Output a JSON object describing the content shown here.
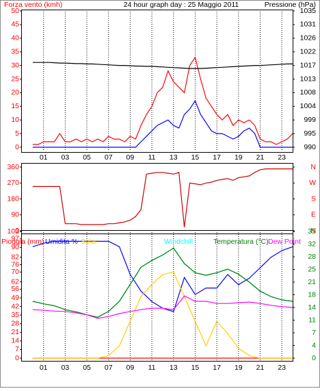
{
  "chart_data": [
    {
      "type": "line",
      "title": "24 hour graph day : 25 Maggio 2011",
      "ylabel": "Forza vento (kmh)",
      "y2label": "Pressione (hPa)",
      "x": [
        0,
        0.5,
        1,
        1.5,
        2,
        2.5,
        3,
        3.5,
        4,
        4.5,
        5,
        5.5,
        6,
        6.5,
        7,
        7.5,
        8,
        8.5,
        9,
        9.5,
        10,
        10.5,
        11,
        11.5,
        12,
        12.5,
        13,
        13.5,
        14,
        14.5,
        15,
        15.5,
        16,
        16.5,
        17,
        17.5,
        18,
        18.5,
        19,
        19.5,
        20,
        20.5,
        21,
        21.5,
        22,
        22.5,
        23,
        23.5,
        24
      ],
      "xlim": [
        -1,
        24
      ],
      "xticks": [
        {
          "value": 1,
          "label": "01"
        },
        {
          "value": 3,
          "label": "03"
        },
        {
          "value": 5,
          "label": "05"
        },
        {
          "value": 7,
          "label": "07"
        },
        {
          "value": 9,
          "label": "09"
        },
        {
          "value": 11,
          "label": "11"
        },
        {
          "value": 13,
          "label": "13"
        },
        {
          "value": 15,
          "label": "15"
        },
        {
          "value": 17,
          "label": "17"
        },
        {
          "value": 19,
          "label": "19"
        },
        {
          "value": 21,
          "label": "21"
        },
        {
          "value": 23,
          "label": "23"
        }
      ],
      "ylim": [
        0,
        50
      ],
      "yticks": [
        0,
        5,
        10,
        15,
        20,
        25,
        30,
        35,
        40,
        45,
        50
      ],
      "y2lim": [
        990,
        1035
      ],
      "y2ticks": [
        990,
        {
          "value": 994.5,
          "label": "995"
        },
        999,
        {
          "value": 1003.5,
          "label": "1004"
        },
        1008,
        {
          "value": 1012.5,
          "label": "1013"
        },
        1017,
        {
          "value": 1021.5,
          "label": "1022"
        },
        1026,
        {
          "value": 1030.5,
          "label": "1031"
        },
        1035
      ],
      "grid": true,
      "series": [
        {
          "color": "#ff0000",
          "values": [
            1,
            1,
            2,
            2,
            2,
            5,
            2,
            2,
            3,
            2,
            3,
            2,
            3,
            2,
            4,
            3,
            3,
            2,
            4,
            3,
            8,
            12,
            15,
            20,
            22,
            28,
            24,
            22,
            20,
            30,
            33,
            25,
            18,
            15,
            12,
            10,
            12,
            8,
            10,
            9,
            10,
            8,
            3,
            2,
            2,
            1,
            2,
            3,
            5
          ]
        },
        {
          "color": "#0000ff",
          "values": [
            0,
            0,
            0,
            0,
            0,
            0,
            0,
            0,
            0,
            0,
            0,
            0,
            0,
            0,
            0,
            0,
            0,
            0,
            0,
            0,
            2,
            4,
            6,
            8,
            9,
            10,
            8,
            7,
            12,
            14,
            17,
            12,
            9,
            6,
            5,
            5,
            4,
            3,
            4,
            6,
            7,
            5,
            0,
            0,
            0,
            0,
            0,
            0,
            0
          ]
        },
        {
          "color": "#000000",
          "axis": "y2",
          "values": [
            1018,
            1018,
            1018,
            1018,
            1017.9,
            1017.8,
            1017.8,
            1017.7,
            1017.6,
            1017.6,
            1017.5,
            1017.5,
            1017.4,
            1017.3,
            1017.2,
            1017.1,
            1017,
            1017,
            1016.9,
            1016.8,
            1016.8,
            1016.7,
            1016.7,
            1016.6,
            1016.5,
            1016.4,
            1016.3,
            1016.2,
            1016.1,
            1016,
            1016,
            1016,
            1016.1,
            1016.2,
            1016.3,
            1016.4,
            1016.5,
            1016.6,
            1016.7,
            1016.8,
            1016.9,
            1017,
            1017,
            1017.1,
            1017.2,
            1017.3,
            1017.4,
            1017.5,
            1017.5
          ]
        }
      ]
    },
    {
      "type": "line",
      "x": [
        0,
        0.5,
        1,
        1.5,
        2,
        2.5,
        3,
        3.5,
        4,
        4.5,
        5,
        5.5,
        6,
        6.5,
        7,
        7.5,
        8,
        8.5,
        9,
        9.5,
        10,
        10.5,
        11,
        11.5,
        12,
        12.5,
        13,
        13.5,
        14,
        14.5,
        15,
        15.5,
        16,
        16.5,
        17,
        17.5,
        18,
        18.5,
        19,
        19.5,
        20,
        20.5,
        21,
        21.5,
        22,
        22.5,
        23,
        23.5,
        24
      ],
      "xlim": [
        -1,
        24
      ],
      "ylim": [
        0,
        360
      ],
      "yticks": [
        0,
        90,
        180,
        270,
        360
      ],
      "y2lim": [
        0,
        360
      ],
      "y2ticks": [
        {
          "value": 0,
          "label": "N"
        },
        {
          "value": 90,
          "label": "E"
        },
        {
          "value": 180,
          "label": "S"
        },
        {
          "value": 270,
          "label": "W"
        },
        {
          "value": 360,
          "label": "N"
        }
      ],
      "series": [
        {
          "color": "#cc0000",
          "values": [
            250,
            250,
            250,
            250,
            250,
            250,
            40,
            40,
            40,
            35,
            35,
            35,
            35,
            35,
            40,
            40,
            45,
            50,
            60,
            80,
            120,
            320,
            325,
            330,
            330,
            325,
            320,
            330,
            20,
            270,
            265,
            260,
            270,
            275,
            285,
            290,
            295,
            285,
            300,
            305,
            310,
            330,
            345,
            350,
            350,
            350,
            350,
            350,
            350
          ]
        }
      ]
    },
    {
      "type": "line",
      "x": [
        0,
        1,
        2,
        3,
        4,
        5,
        6,
        7,
        8,
        9,
        10,
        11,
        12,
        13,
        14,
        15,
        16,
        17,
        18,
        19,
        20,
        21,
        22,
        23,
        24
      ],
      "xlim": [
        -1,
        24
      ],
      "xticks": [
        {
          "value": 1,
          "label": "01"
        },
        {
          "value": 3,
          "label": "03"
        },
        {
          "value": 5,
          "label": "05"
        },
        {
          "value": 7,
          "label": "07"
        },
        {
          "value": 9,
          "label": "09"
        },
        {
          "value": 11,
          "label": "11"
        },
        {
          "value": 13,
          "label": "13"
        },
        {
          "value": 15,
          "label": "15"
        },
        {
          "value": 17,
          "label": "17"
        },
        {
          "value": 19,
          "label": "19"
        },
        {
          "value": 21,
          "label": "21"
        },
        {
          "value": 23,
          "label": "23"
        }
      ],
      "ylim": [
        0,
        103
      ],
      "yticks": [
        0,
        7,
        14,
        21,
        28,
        35,
        42,
        49,
        56,
        62,
        70,
        76,
        82,
        90,
        97,
        103
      ],
      "y2lim": [
        0,
        35
      ],
      "y2ticks": [
        0,
        {
          "value": 3.5,
          "label": "4"
        },
        7,
        {
          "value": 10.5,
          "label": "11"
        },
        14,
        {
          "value": 17.5,
          "label": "18"
        },
        21,
        {
          "value": 24.5,
          "label": "25"
        },
        28,
        {
          "value": 31.5,
          "label": "32"
        },
        35
      ],
      "grid": true,
      "series": [
        {
          "name": "Pioggia (mm)",
          "color": "#ff0000",
          "values": [
            0,
            0,
            0,
            0,
            0,
            0,
            0,
            0,
            0,
            0,
            0,
            0,
            0,
            0,
            0,
            0,
            0,
            0,
            0,
            0,
            0,
            0,
            0,
            0,
            0
          ]
        },
        {
          "name": "Umidita %",
          "color": "#0000ff",
          "values": [
            90.6,
            93.4,
            95,
            95,
            95,
            95,
            95,
            95,
            90.6,
            68,
            54.5,
            46,
            40.6,
            37.8,
            65.6,
            51.7,
            57,
            57,
            68,
            59.7,
            65,
            73.5,
            82,
            87.4,
            90.6
          ]
        },
        {
          "name": "Solar",
          "color": "#ffcc00",
          "values": [
            0,
            0,
            0,
            0,
            0,
            0,
            0,
            2,
            10,
            30,
            50,
            60,
            68,
            70,
            50,
            30,
            10,
            30,
            20,
            8,
            2,
            0,
            0,
            0,
            0
          ]
        },
        {
          "name": "Windchill",
          "color": "#00ffff",
          "axis": "y2",
          "values": [
            15.7,
            15,
            14.5,
            13.4,
            12.8,
            12,
            11.3,
            12.9,
            15.7,
            20.4,
            25.1,
            27,
            28.5,
            30.4,
            26.1,
            23.6,
            22.9,
            23.6,
            24.6,
            23.2,
            21,
            18.5,
            17,
            16.1,
            15.7
          ]
        },
        {
          "name": "Temperatura (°C)",
          "color": "#008000",
          "axis": "y2",
          "values": [
            15.7,
            15,
            14.5,
            13.4,
            12.8,
            12,
            11.3,
            12.9,
            15.7,
            20.4,
            25.1,
            27,
            28.5,
            30.4,
            26.1,
            23.6,
            22.9,
            23.6,
            24.6,
            23.2,
            21,
            18.5,
            17,
            16.1,
            15.7
          ]
        },
        {
          "name": "Dew Point",
          "color": "#ff00ff",
          "axis": "y2",
          "values": [
            13.4,
            13.2,
            13,
            12.9,
            12.5,
            12,
            11,
            11.5,
            12.3,
            12.9,
            13.4,
            13.8,
            13.8,
            13.4,
            17.2,
            15.7,
            15.7,
            15.1,
            15.1,
            15.3,
            15.5,
            15.1,
            14.6,
            14.2,
            14
          ]
        }
      ]
    }
  ]
}
